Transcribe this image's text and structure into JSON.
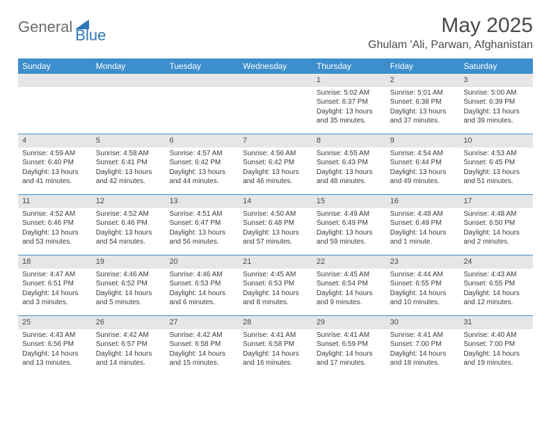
{
  "brand": {
    "part1": "General",
    "part2": "Blue"
  },
  "title": "May 2025",
  "location": "Ghulam 'Ali, Parwan, Afghanistan",
  "colors": {
    "header_bg": "#3c8ecc",
    "header_text": "#ffffff",
    "daynum_bg": "#e6e6e6",
    "row_border": "#3c8ecc",
    "body_text": "#3a3a3a",
    "brand_gray": "#6b6b6b",
    "brand_blue": "#2f77b8"
  },
  "day_headers": [
    "Sunday",
    "Monday",
    "Tuesday",
    "Wednesday",
    "Thursday",
    "Friday",
    "Saturday"
  ],
  "weeks": [
    [
      null,
      null,
      null,
      null,
      {
        "n": "1",
        "sr": "Sunrise: 5:02 AM",
        "ss": "Sunset: 6:37 PM",
        "dl": "Daylight: 13 hours and 35 minutes."
      },
      {
        "n": "2",
        "sr": "Sunrise: 5:01 AM",
        "ss": "Sunset: 6:38 PM",
        "dl": "Daylight: 13 hours and 37 minutes."
      },
      {
        "n": "3",
        "sr": "Sunrise: 5:00 AM",
        "ss": "Sunset: 6:39 PM",
        "dl": "Daylight: 13 hours and 39 minutes."
      }
    ],
    [
      {
        "n": "4",
        "sr": "Sunrise: 4:59 AM",
        "ss": "Sunset: 6:40 PM",
        "dl": "Daylight: 13 hours and 41 minutes."
      },
      {
        "n": "5",
        "sr": "Sunrise: 4:58 AM",
        "ss": "Sunset: 6:41 PM",
        "dl": "Daylight: 13 hours and 42 minutes."
      },
      {
        "n": "6",
        "sr": "Sunrise: 4:57 AM",
        "ss": "Sunset: 6:42 PM",
        "dl": "Daylight: 13 hours and 44 minutes."
      },
      {
        "n": "7",
        "sr": "Sunrise: 4:56 AM",
        "ss": "Sunset: 6:42 PM",
        "dl": "Daylight: 13 hours and 46 minutes."
      },
      {
        "n": "8",
        "sr": "Sunrise: 4:55 AM",
        "ss": "Sunset: 6:43 PM",
        "dl": "Daylight: 13 hours and 48 minutes."
      },
      {
        "n": "9",
        "sr": "Sunrise: 4:54 AM",
        "ss": "Sunset: 6:44 PM",
        "dl": "Daylight: 13 hours and 49 minutes."
      },
      {
        "n": "10",
        "sr": "Sunrise: 4:53 AM",
        "ss": "Sunset: 6:45 PM",
        "dl": "Daylight: 13 hours and 51 minutes."
      }
    ],
    [
      {
        "n": "11",
        "sr": "Sunrise: 4:52 AM",
        "ss": "Sunset: 6:46 PM",
        "dl": "Daylight: 13 hours and 53 minutes."
      },
      {
        "n": "12",
        "sr": "Sunrise: 4:52 AM",
        "ss": "Sunset: 6:46 PM",
        "dl": "Daylight: 13 hours and 54 minutes."
      },
      {
        "n": "13",
        "sr": "Sunrise: 4:51 AM",
        "ss": "Sunset: 6:47 PM",
        "dl": "Daylight: 13 hours and 56 minutes."
      },
      {
        "n": "14",
        "sr": "Sunrise: 4:50 AM",
        "ss": "Sunset: 6:48 PM",
        "dl": "Daylight: 13 hours and 57 minutes."
      },
      {
        "n": "15",
        "sr": "Sunrise: 4:49 AM",
        "ss": "Sunset: 6:49 PM",
        "dl": "Daylight: 13 hours and 59 minutes."
      },
      {
        "n": "16",
        "sr": "Sunrise: 4:48 AM",
        "ss": "Sunset: 6:49 PM",
        "dl": "Daylight: 14 hours and 1 minute."
      },
      {
        "n": "17",
        "sr": "Sunrise: 4:48 AM",
        "ss": "Sunset: 6:50 PM",
        "dl": "Daylight: 14 hours and 2 minutes."
      }
    ],
    [
      {
        "n": "18",
        "sr": "Sunrise: 4:47 AM",
        "ss": "Sunset: 6:51 PM",
        "dl": "Daylight: 14 hours and 3 minutes."
      },
      {
        "n": "19",
        "sr": "Sunrise: 4:46 AM",
        "ss": "Sunset: 6:52 PM",
        "dl": "Daylight: 14 hours and 5 minutes."
      },
      {
        "n": "20",
        "sr": "Sunrise: 4:46 AM",
        "ss": "Sunset: 6:53 PM",
        "dl": "Daylight: 14 hours and 6 minutes."
      },
      {
        "n": "21",
        "sr": "Sunrise: 4:45 AM",
        "ss": "Sunset: 6:53 PM",
        "dl": "Daylight: 14 hours and 8 minutes."
      },
      {
        "n": "22",
        "sr": "Sunrise: 4:45 AM",
        "ss": "Sunset: 6:54 PM",
        "dl": "Daylight: 14 hours and 9 minutes."
      },
      {
        "n": "23",
        "sr": "Sunrise: 4:44 AM",
        "ss": "Sunset: 6:55 PM",
        "dl": "Daylight: 14 hours and 10 minutes."
      },
      {
        "n": "24",
        "sr": "Sunrise: 4:43 AM",
        "ss": "Sunset: 6:55 PM",
        "dl": "Daylight: 14 hours and 12 minutes."
      }
    ],
    [
      {
        "n": "25",
        "sr": "Sunrise: 4:43 AM",
        "ss": "Sunset: 6:56 PM",
        "dl": "Daylight: 14 hours and 13 minutes."
      },
      {
        "n": "26",
        "sr": "Sunrise: 4:42 AM",
        "ss": "Sunset: 6:57 PM",
        "dl": "Daylight: 14 hours and 14 minutes."
      },
      {
        "n": "27",
        "sr": "Sunrise: 4:42 AM",
        "ss": "Sunset: 6:58 PM",
        "dl": "Daylight: 14 hours and 15 minutes."
      },
      {
        "n": "28",
        "sr": "Sunrise: 4:41 AM",
        "ss": "Sunset: 6:58 PM",
        "dl": "Daylight: 14 hours and 16 minutes."
      },
      {
        "n": "29",
        "sr": "Sunrise: 4:41 AM",
        "ss": "Sunset: 6:59 PM",
        "dl": "Daylight: 14 hours and 17 minutes."
      },
      {
        "n": "30",
        "sr": "Sunrise: 4:41 AM",
        "ss": "Sunset: 7:00 PM",
        "dl": "Daylight: 14 hours and 18 minutes."
      },
      {
        "n": "31",
        "sr": "Sunrise: 4:40 AM",
        "ss": "Sunset: 7:00 PM",
        "dl": "Daylight: 14 hours and 19 minutes."
      }
    ]
  ]
}
